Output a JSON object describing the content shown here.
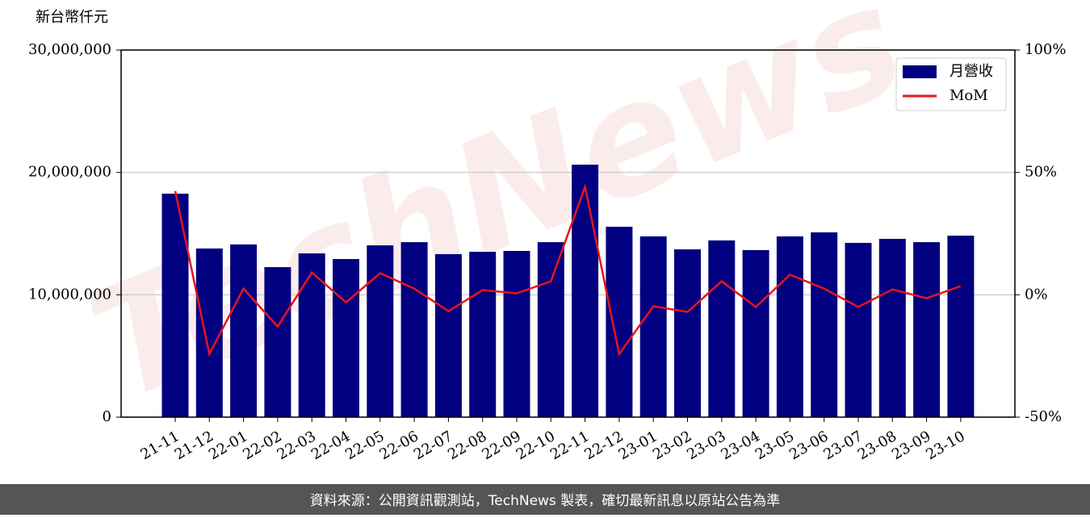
{
  "chart_data": {
    "type": "combo",
    "watermark": "TechNews",
    "y_axis_label": "新台幣仟元",
    "categories": [
      "21-11",
      "21-12",
      "22-01",
      "22-02",
      "22-03",
      "22-04",
      "22-05",
      "22-06",
      "22-07",
      "22-08",
      "22-09",
      "22-10",
      "22-11",
      "22-12",
      "23-01",
      "23-02",
      "23-03",
      "23-04",
      "23-05",
      "23-06",
      "23-07",
      "23-08",
      "23-09",
      "23-10"
    ],
    "series": [
      {
        "name": "月營收",
        "type": "bar",
        "color": "#000080",
        "axis": "y",
        "values": [
          18260000,
          13780000,
          14110000,
          12260000,
          13380000,
          12920000,
          14040000,
          14300000,
          13320000,
          13510000,
          13580000,
          14300000,
          20630000,
          15560000,
          14770000,
          13710000,
          14440000,
          13650000,
          14770000,
          15100000,
          14240000,
          14570000,
          14300000,
          14830000
        ]
      },
      {
        "name": "MoM",
        "type": "line",
        "color": "#e8141c",
        "axis": "y2",
        "values": [
          42.4,
          -24.2,
          2.5,
          -13.0,
          9.1,
          -3.1,
          8.8,
          2.5,
          -6.7,
          1.9,
          0.6,
          5.5,
          44.1,
          -24.2,
          -4.7,
          -7.0,
          5.5,
          -5.0,
          8.2,
          2.5,
          -5.0,
          2.2,
          -1.4,
          3.5
        ]
      }
    ],
    "ylim": [
      0,
      30000000
    ],
    "yticks": [
      0,
      {
        "value": 10000000,
        "label": "10,000,000"
      },
      {
        "value": 20000000,
        "label": "20,000,000"
      },
      {
        "value": 30000000,
        "label": "30,000,000"
      }
    ],
    "y2lim": [
      -50,
      100
    ],
    "y2ticks": [
      {
        "value": -50,
        "label": "-50%"
      },
      {
        "value": 0,
        "label": "0%"
      },
      {
        "value": 50,
        "label": "50%"
      },
      {
        "value": 100,
        "label": "100%"
      }
    ],
    "grid": true,
    "legend": "upper right",
    "footer": "資料來源：公開資訊觀測站，TechNews 製表，確切最新訊息以原站公告為準"
  }
}
